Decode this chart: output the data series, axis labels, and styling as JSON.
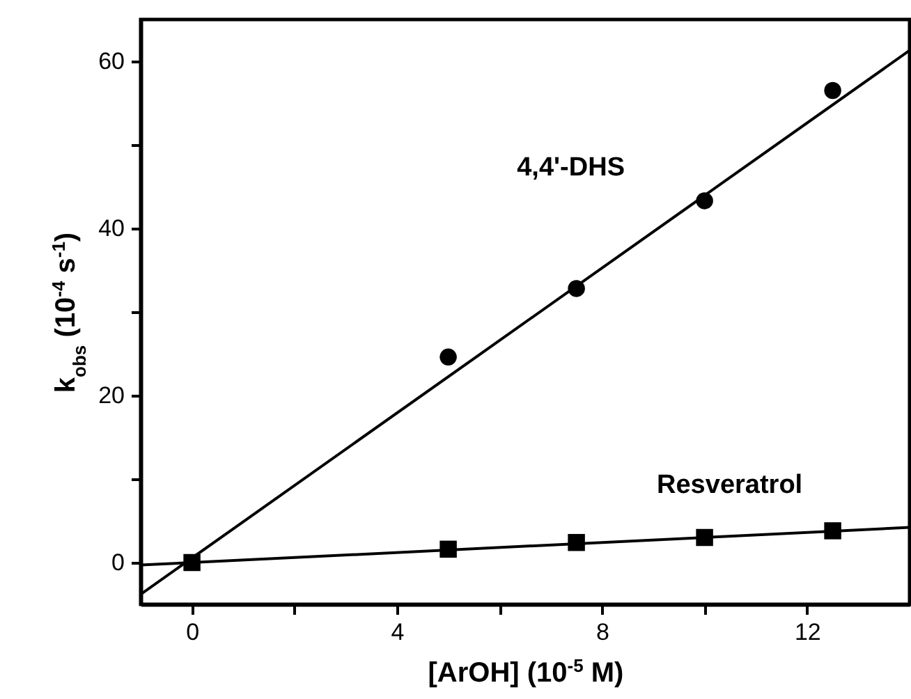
{
  "chart_data": {
    "type": "scatter",
    "xlabel": "[ArOH] (10$^{-5}$ M)",
    "ylabel": "k$_{obs}$ (10$^{-4}$ s$^{-1}$)",
    "xlim": [
      -1,
      14
    ],
    "ylim": [
      -5,
      65
    ],
    "xticks": [
      0,
      {
        "value": 2,
        "label": null
      },
      4,
      {
        "value": 6,
        "label": null
      },
      8,
      {
        "value": 10,
        "label": null
      },
      12
    ],
    "yticks": [
      0,
      {
        "value": 10,
        "label": null
      },
      20,
      {
        "value": 30,
        "label": null
      },
      40,
      {
        "value": 50,
        "label": null
      },
      60
    ],
    "grid": false,
    "series": [
      {
        "name": "4,4'-DHS",
        "marker": "circle",
        "color": "#000000",
        "x": [
          5,
          7.5,
          10,
          12.5
        ],
        "values": [
          24.6,
          32.8,
          43.3,
          56.5
        ]
      },
      {
        "name": "Resveratrol",
        "marker": "square",
        "color": "#000000",
        "x": [
          0,
          5,
          7.5,
          10,
          12.5
        ],
        "values": [
          0,
          1.6,
          2.4,
          3.0,
          3.8
        ]
      },
      {
        "type": "line",
        "marker": "none",
        "color": "#000000",
        "x": [
          -1,
          14
        ],
        "values": [
          -3.8,
          61.3
        ]
      },
      {
        "type": "line",
        "marker": "none",
        "color": "#000000",
        "x": [
          -1,
          14
        ],
        "values": [
          -0.3,
          4.2
        ]
      }
    ]
  }
}
